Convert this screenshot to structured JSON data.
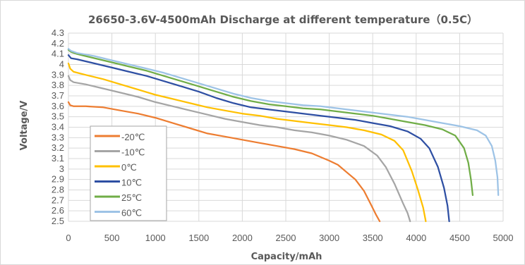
{
  "chart_data": {
    "type": "line",
    "title": "26650-3.6V-4500mAh Discharge at different temperature（0.5C）",
    "xlabel": "Capacity/mAh",
    "ylabel": "Voltage/V",
    "xlim": [
      0,
      5000
    ],
    "ylim": [
      2.5,
      4.3
    ],
    "x_ticks": [
      "0",
      "500",
      "1000",
      "1500",
      "2000",
      "2500",
      "3000",
      "3500",
      "4000",
      "4500",
      "5000"
    ],
    "y_ticks": [
      "2.5",
      "2.6",
      "2.7",
      "2.8",
      "2.9",
      "3",
      "3.1",
      "3.2",
      "3.3",
      "3.4",
      "3.5",
      "3.6",
      "3.7",
      "3.8",
      "3.9",
      "4",
      "4.1",
      "4.2",
      "4.3"
    ],
    "grid": true,
    "legend_position": "bottom-left",
    "series": [
      {
        "name": "-20℃",
        "color": "#ED7D31",
        "points": [
          [
            0,
            3.64
          ],
          [
            20,
            3.61
          ],
          [
            60,
            3.6
          ],
          [
            200,
            3.6
          ],
          [
            400,
            3.59
          ],
          [
            600,
            3.56
          ],
          [
            800,
            3.53
          ],
          [
            1000,
            3.49
          ],
          [
            1200,
            3.44
          ],
          [
            1400,
            3.39
          ],
          [
            1600,
            3.34
          ],
          [
            1800,
            3.31
          ],
          [
            2000,
            3.28
          ],
          [
            2200,
            3.25
          ],
          [
            2400,
            3.22
          ],
          [
            2600,
            3.19
          ],
          [
            2800,
            3.15
          ],
          [
            3000,
            3.08
          ],
          [
            3100,
            3.04
          ],
          [
            3200,
            2.97
          ],
          [
            3300,
            2.9
          ],
          [
            3400,
            2.79
          ],
          [
            3480,
            2.66
          ],
          [
            3540,
            2.56
          ],
          [
            3580,
            2.5
          ]
        ]
      },
      {
        "name": "-10℃",
        "color": "#A5A5A5",
        "points": [
          [
            0,
            3.89
          ],
          [
            20,
            3.85
          ],
          [
            60,
            3.83
          ],
          [
            200,
            3.81
          ],
          [
            400,
            3.77
          ],
          [
            600,
            3.73
          ],
          [
            800,
            3.69
          ],
          [
            1000,
            3.64
          ],
          [
            1200,
            3.6
          ],
          [
            1400,
            3.56
          ],
          [
            1600,
            3.52
          ],
          [
            1800,
            3.48
          ],
          [
            2000,
            3.45
          ],
          [
            2200,
            3.42
          ],
          [
            2400,
            3.4
          ],
          [
            2600,
            3.37
          ],
          [
            2800,
            3.35
          ],
          [
            3000,
            3.32
          ],
          [
            3200,
            3.28
          ],
          [
            3400,
            3.22
          ],
          [
            3550,
            3.13
          ],
          [
            3650,
            3.02
          ],
          [
            3750,
            2.86
          ],
          [
            3850,
            2.67
          ],
          [
            3900,
            2.58
          ],
          [
            3930,
            2.5
          ]
        ]
      },
      {
        "name": "0℃",
        "color": "#FFC000",
        "points": [
          [
            0,
            4.01
          ],
          [
            20,
            3.96
          ],
          [
            60,
            3.93
          ],
          [
            200,
            3.9
          ],
          [
            400,
            3.86
          ],
          [
            600,
            3.81
          ],
          [
            800,
            3.76
          ],
          [
            1000,
            3.71
          ],
          [
            1200,
            3.67
          ],
          [
            1400,
            3.63
          ],
          [
            1600,
            3.59
          ],
          [
            1800,
            3.56
          ],
          [
            2000,
            3.53
          ],
          [
            2200,
            3.51
          ],
          [
            2400,
            3.48
          ],
          [
            2600,
            3.46
          ],
          [
            2800,
            3.44
          ],
          [
            3000,
            3.42
          ],
          [
            3200,
            3.4
          ],
          [
            3400,
            3.37
          ],
          [
            3600,
            3.33
          ],
          [
            3750,
            3.27
          ],
          [
            3850,
            3.18
          ],
          [
            3950,
            2.98
          ],
          [
            4020,
            2.8
          ],
          [
            4080,
            2.63
          ],
          [
            4110,
            2.5
          ]
        ]
      },
      {
        "name": "10℃",
        "color": "#2E4FA3",
        "points": [
          [
            0,
            4.09
          ],
          [
            30,
            4.06
          ],
          [
            100,
            4.05
          ],
          [
            300,
            4.01
          ],
          [
            500,
            3.97
          ],
          [
            700,
            3.93
          ],
          [
            900,
            3.89
          ],
          [
            1100,
            3.84
          ],
          [
            1300,
            3.79
          ],
          [
            1500,
            3.74
          ],
          [
            1700,
            3.68
          ],
          [
            1900,
            3.63
          ],
          [
            2100,
            3.59
          ],
          [
            2300,
            3.57
          ],
          [
            2500,
            3.55
          ],
          [
            2700,
            3.53
          ],
          [
            2900,
            3.51
          ],
          [
            3100,
            3.49
          ],
          [
            3300,
            3.47
          ],
          [
            3500,
            3.44
          ],
          [
            3700,
            3.41
          ],
          [
            3900,
            3.36
          ],
          [
            4050,
            3.29
          ],
          [
            4150,
            3.2
          ],
          [
            4250,
            3.02
          ],
          [
            4320,
            2.82
          ],
          [
            4360,
            2.65
          ],
          [
            4380,
            2.5
          ]
        ]
      },
      {
        "name": "25℃",
        "color": "#70AD47",
        "points": [
          [
            0,
            4.14
          ],
          [
            30,
            4.12
          ],
          [
            100,
            4.1
          ],
          [
            300,
            4.06
          ],
          [
            500,
            4.02
          ],
          [
            700,
            3.98
          ],
          [
            900,
            3.94
          ],
          [
            1100,
            3.89
          ],
          [
            1300,
            3.84
          ],
          [
            1500,
            3.79
          ],
          [
            1700,
            3.74
          ],
          [
            1900,
            3.69
          ],
          [
            2100,
            3.65
          ],
          [
            2300,
            3.62
          ],
          [
            2500,
            3.6
          ],
          [
            2700,
            3.58
          ],
          [
            2900,
            3.57
          ],
          [
            3100,
            3.55
          ],
          [
            3300,
            3.53
          ],
          [
            3500,
            3.51
          ],
          [
            3700,
            3.48
          ],
          [
            3900,
            3.45
          ],
          [
            4100,
            3.42
          ],
          [
            4300,
            3.38
          ],
          [
            4450,
            3.32
          ],
          [
            4550,
            3.2
          ],
          [
            4600,
            3.06
          ],
          [
            4630,
            2.9
          ],
          [
            4650,
            2.75
          ]
        ]
      },
      {
        "name": "60℃",
        "color": "#9DC3E6",
        "points": [
          [
            0,
            4.15
          ],
          [
            30,
            4.13
          ],
          [
            100,
            4.11
          ],
          [
            300,
            4.08
          ],
          [
            500,
            4.04
          ],
          [
            700,
            4.0
          ],
          [
            900,
            3.96
          ],
          [
            1100,
            3.92
          ],
          [
            1300,
            3.87
          ],
          [
            1500,
            3.82
          ],
          [
            1700,
            3.77
          ],
          [
            1900,
            3.72
          ],
          [
            2100,
            3.68
          ],
          [
            2300,
            3.65
          ],
          [
            2500,
            3.63
          ],
          [
            2700,
            3.61
          ],
          [
            2900,
            3.6
          ],
          [
            3100,
            3.58
          ],
          [
            3300,
            3.56
          ],
          [
            3500,
            3.54
          ],
          [
            3700,
            3.52
          ],
          [
            3900,
            3.5
          ],
          [
            4100,
            3.47
          ],
          [
            4300,
            3.44
          ],
          [
            4500,
            3.41
          ],
          [
            4700,
            3.37
          ],
          [
            4800,
            3.32
          ],
          [
            4870,
            3.22
          ],
          [
            4910,
            3.08
          ],
          [
            4935,
            2.92
          ],
          [
            4945,
            2.75
          ]
        ]
      }
    ]
  }
}
